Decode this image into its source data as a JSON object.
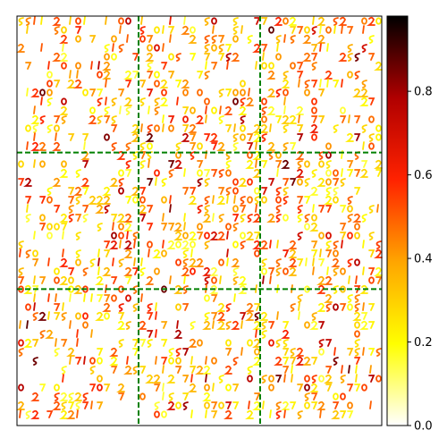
{
  "chart_data": {
    "type": "heatmap",
    "title": "",
    "xlabel": "",
    "ylabel": "",
    "grid": {
      "rows": 3,
      "cols": 3,
      "divider_color": "#008000",
      "divider_style": "dashed"
    },
    "colormap": "hot_r",
    "colormap_stops": [
      "#ffffff",
      "#ffff00",
      "#ffa500",
      "#ff2200",
      "#b00000",
      "#000000"
    ],
    "colorbar": {
      "min": 0.0,
      "max": 0.98,
      "ticks": [
        0.0,
        0.2,
        0.4,
        0.6,
        0.8
      ],
      "tick_labels": [
        "0.0",
        "0.2",
        "0.4",
        "0.6",
        "0.8"
      ]
    },
    "content": "3x3 mosaic of small handwritten digit glyphs rendered as intensity heatmap"
  }
}
